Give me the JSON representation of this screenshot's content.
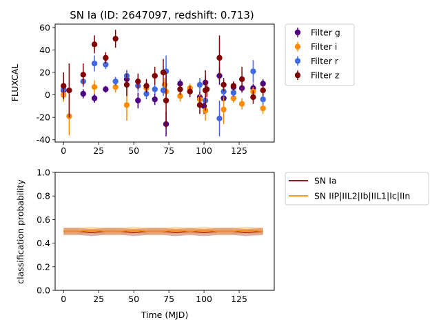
{
  "chart_data": [
    {
      "type": "scatter",
      "title": "SN Ia (ID: 2647097, redshift: 0.713)",
      "xlabel": "",
      "ylabel": "FLUXCAL",
      "xlim": [
        -6,
        150
      ],
      "ylim": [
        -42,
        63
      ],
      "xticks": [
        0,
        25,
        50,
        75,
        100,
        125
      ],
      "yticks": [
        -40,
        -20,
        0,
        20,
        40,
        60
      ],
      "legend_position": "outside-right",
      "series": [
        {
          "name": "Filter g",
          "color": "#4b0082",
          "points": [
            {
              "x": 0,
              "y": 4,
              "err": 5
            },
            {
              "x": 14,
              "y": 1,
              "err": 4
            },
            {
              "x": 22,
              "y": -3,
              "err": 4
            },
            {
              "x": 30,
              "y": 5,
              "err": 3
            },
            {
              "x": 45,
              "y": 14,
              "err": 8
            },
            {
              "x": 53,
              "y": -5,
              "err": 7
            },
            {
              "x": 65,
              "y": -4,
              "err": 5
            },
            {
              "x": 73,
              "y": -26,
              "err": 11
            },
            {
              "x": 83,
              "y": 10,
              "err": 4
            },
            {
              "x": 97,
              "y": -2,
              "err": 5
            },
            {
              "x": 100,
              "y": -10,
              "err": 7
            },
            {
              "x": 101,
              "y": 11,
              "err": 6
            },
            {
              "x": 111,
              "y": 17,
              "err": 8
            },
            {
              "x": 114,
              "y": -3,
              "err": 5
            },
            {
              "x": 121,
              "y": 7,
              "err": 4
            },
            {
              "x": 127,
              "y": 6,
              "err": 4
            },
            {
              "x": 135,
              "y": 6,
              "err": 4
            },
            {
              "x": 142,
              "y": 10,
              "err": 4
            }
          ]
        },
        {
          "name": "Filter i",
          "color": "#ff8c00",
          "points": [
            {
              "x": 0,
              "y": 0,
              "err": 6
            },
            {
              "x": 4,
              "y": -19,
              "err": 17
            },
            {
              "x": 22,
              "y": 7,
              "err": 6
            },
            {
              "x": 37,
              "y": 7,
              "err": 5
            },
            {
              "x": 45,
              "y": -9,
              "err": 14
            },
            {
              "x": 59,
              "y": 6,
              "err": 6
            },
            {
              "x": 72,
              "y": 9,
              "err": 6
            },
            {
              "x": 73,
              "y": 3,
              "err": 7
            },
            {
              "x": 83,
              "y": -1,
              "err": 5
            },
            {
              "x": 90,
              "y": 6,
              "err": 4
            },
            {
              "x": 97,
              "y": -4,
              "err": 5
            },
            {
              "x": 101,
              "y": -14,
              "err": 9
            },
            {
              "x": 114,
              "y": -13,
              "err": 13
            },
            {
              "x": 121,
              "y": -3,
              "err": 4
            },
            {
              "x": 127,
              "y": -8,
              "err": 5
            },
            {
              "x": 135,
              "y": 3,
              "err": 4
            },
            {
              "x": 142,
              "y": -12,
              "err": 5
            }
          ]
        },
        {
          "name": "Filter r",
          "color": "#4169e1",
          "points": [
            {
              "x": 0,
              "y": 5,
              "err": 5
            },
            {
              "x": 14,
              "y": 12,
              "err": 5
            },
            {
              "x": 22,
              "y": 28,
              "err": 7
            },
            {
              "x": 30,
              "y": 27,
              "err": 4
            },
            {
              "x": 37,
              "y": 12,
              "err": 4
            },
            {
              "x": 45,
              "y": 17,
              "err": 5
            },
            {
              "x": 53,
              "y": 8,
              "err": 5
            },
            {
              "x": 59,
              "y": 1,
              "err": 5
            },
            {
              "x": 65,
              "y": 5,
              "err": 4
            },
            {
              "x": 71,
              "y": 4,
              "err": 5
            },
            {
              "x": 73,
              "y": 21,
              "err": 14
            },
            {
              "x": 97,
              "y": 9,
              "err": 6
            },
            {
              "x": 101,
              "y": -5,
              "err": 6
            },
            {
              "x": 111,
              "y": -21,
              "err": 16
            },
            {
              "x": 114,
              "y": 3,
              "err": 5
            },
            {
              "x": 121,
              "y": 2,
              "err": 4
            },
            {
              "x": 135,
              "y": 21,
              "err": 10
            },
            {
              "x": 142,
              "y": -4,
              "err": 5
            }
          ]
        },
        {
          "name": "Filter z",
          "color": "#800000",
          "points": [
            {
              "x": 0,
              "y": 8,
              "err": 12
            },
            {
              "x": 4,
              "y": 4,
              "err": 24
            },
            {
              "x": 14,
              "y": 18,
              "err": 10
            },
            {
              "x": 22,
              "y": 45,
              "err": 8
            },
            {
              "x": 30,
              "y": 33,
              "err": 5
            },
            {
              "x": 37,
              "y": 50,
              "err": 8
            },
            {
              "x": 45,
              "y": 9,
              "err": 10
            },
            {
              "x": 53,
              "y": 12,
              "err": 7
            },
            {
              "x": 59,
              "y": 8,
              "err": 6
            },
            {
              "x": 65,
              "y": 17,
              "err": 8
            },
            {
              "x": 71,
              "y": 20,
              "err": 12
            },
            {
              "x": 73,
              "y": -5,
              "err": 25
            },
            {
              "x": 83,
              "y": 5,
              "err": 5
            },
            {
              "x": 90,
              "y": 3,
              "err": 5
            },
            {
              "x": 97,
              "y": -9,
              "err": 8
            },
            {
              "x": 101,
              "y": 4,
              "err": 18
            },
            {
              "x": 102,
              "y": 5,
              "err": 7
            },
            {
              "x": 111,
              "y": 33,
              "err": 20
            },
            {
              "x": 114,
              "y": 9,
              "err": 6
            },
            {
              "x": 121,
              "y": 8,
              "err": 4
            },
            {
              "x": 127,
              "y": 14,
              "err": 11
            },
            {
              "x": 135,
              "y": -2,
              "err": 6
            },
            {
              "x": 142,
              "y": 4,
              "err": 5
            }
          ]
        }
      ]
    },
    {
      "type": "line",
      "title": "",
      "xlabel": "Time (MJD)",
      "ylabel": "classification probability",
      "xlim": [
        -6,
        150
      ],
      "ylim": [
        0,
        1
      ],
      "xticks": [
        0,
        25,
        50,
        75,
        100,
        125
      ],
      "yticks": [
        0.0,
        0.2,
        0.4,
        0.6,
        0.8,
        1.0
      ],
      "legend_position": "outside-right",
      "x": [
        0,
        10,
        20,
        30,
        40,
        50,
        60,
        70,
        80,
        90,
        100,
        110,
        120,
        130,
        142
      ],
      "series": [
        {
          "name": "SN Ia",
          "color": "#800000",
          "values": [
            0.5,
            0.5,
            0.49,
            0.5,
            0.5,
            0.49,
            0.5,
            0.5,
            0.49,
            0.5,
            0.49,
            0.5,
            0.5,
            0.49,
            0.5
          ],
          "band": 0.03
        },
        {
          "name": "SN IIP|IIL2|Ib|IIL1|Ic|IIn",
          "color": "#ff8c00",
          "values": [
            0.5,
            0.5,
            0.51,
            0.5,
            0.5,
            0.51,
            0.5,
            0.5,
            0.51,
            0.5,
            0.51,
            0.5,
            0.5,
            0.51,
            0.5
          ],
          "band": 0.03
        }
      ]
    }
  ]
}
